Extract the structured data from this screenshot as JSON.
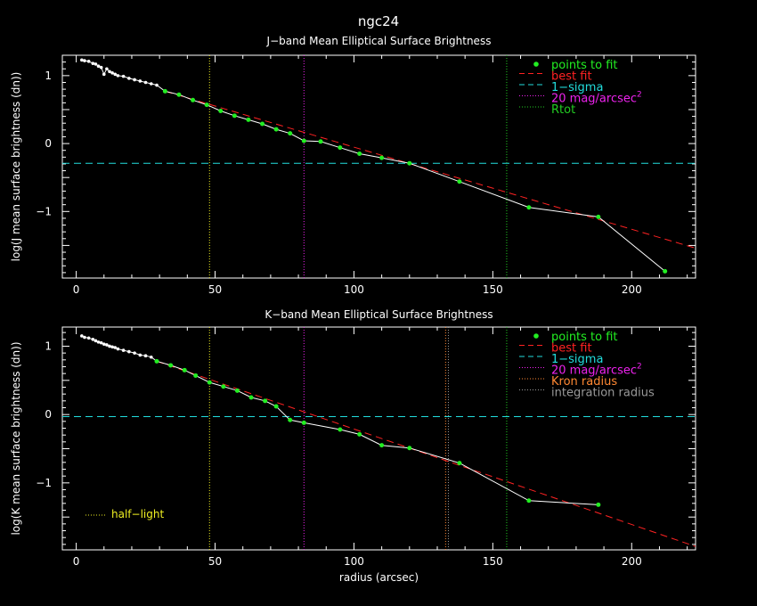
{
  "page_title": "ngc24",
  "chart_data": [
    {
      "type": "line",
      "title": "J−band Mean Elliptical Surface Brightness",
      "xlabel": "",
      "ylabel": "log(J mean surface brightness (dn))",
      "xlim": [
        -5,
        223
      ],
      "ylim": [
        -1.98,
        1.3
      ],
      "x_ticks": [
        "0",
        "50",
        "100",
        "150",
        "200"
      ],
      "y_ticks": [
        "1",
        "0",
        "−1"
      ],
      "legend_position": "top-right",
      "legend": [
        {
          "label": "points to fit",
          "color": "#22ee22"
        },
        {
          "label": "best fit",
          "color": "#ff2222"
        },
        {
          "label": "1−sigma",
          "color": "#22dddd"
        },
        {
          "label": "20 mag/arcsec",
          "sup": "2",
          "color": "#ee22ee"
        },
        {
          "label": "Rtot",
          "color": "#22cc22"
        }
      ],
      "series": [
        {
          "name": "profile",
          "x": [
            2,
            3,
            4.5,
            6,
            7,
            8,
            9,
            10,
            11,
            12,
            13,
            14,
            15,
            17,
            19,
            21,
            23,
            25,
            27,
            29
          ],
          "y": [
            1.23,
            1.22,
            1.21,
            1.18,
            1.17,
            1.14,
            1.12,
            1.02,
            1.1,
            1.06,
            1.04,
            1.02,
            1.0,
            0.99,
            0.96,
            0.94,
            0.92,
            0.9,
            0.88,
            0.86
          ]
        },
        {
          "name": "points to fit",
          "x": [
            32,
            37,
            42,
            47,
            52,
            57,
            62,
            67,
            72,
            77,
            82,
            88,
            95,
            102,
            110,
            120,
            138,
            163,
            188,
            212
          ],
          "y": [
            0.77,
            0.72,
            0.64,
            0.57,
            0.48,
            0.41,
            0.35,
            0.29,
            0.21,
            0.15,
            0.04,
            0.03,
            -0.06,
            -0.15,
            -0.21,
            -0.29,
            -0.56,
            -0.94,
            -1.08,
            -1.88
          ]
        },
        {
          "name": "best fit",
          "x": [
            32,
            223
          ],
          "y": [
            0.77,
            -1.54
          ]
        }
      ],
      "hlines": [
        {
          "name": "1−sigma",
          "y": -0.29
        }
      ],
      "vlines": [
        {
          "name": "half-light",
          "x": 48
        },
        {
          "name": "20 mag/arcsec2",
          "x": 82
        },
        {
          "name": "Rtot",
          "x": 155
        }
      ]
    },
    {
      "type": "line",
      "title": "K−band Mean Elliptical Surface Brightness",
      "xlabel": "radius (arcsec)",
      "ylabel": "log(K mean surface brightness (dn))",
      "xlim": [
        -5,
        223
      ],
      "ylim": [
        -1.98,
        1.28
      ],
      "x_ticks": [
        "0",
        "50",
        "100",
        "150",
        "200"
      ],
      "y_ticks": [
        "1",
        "0",
        "−1"
      ],
      "legend_position": "top-right",
      "legend": [
        {
          "label": "points to fit",
          "color": "#22ee22"
        },
        {
          "label": "best fit",
          "color": "#ff2222"
        },
        {
          "label": "1−sigma",
          "color": "#22dddd"
        },
        {
          "label": "20 mag/arcsec",
          "sup": "2",
          "color": "#ee22ee"
        },
        {
          "label": "Kron radius",
          "color": "#ff8833"
        },
        {
          "label": "integration radius",
          "color": "#999999"
        }
      ],
      "annotation": {
        "label": "half−light",
        "color": "#eeee22"
      },
      "series": [
        {
          "name": "profile",
          "x": [
            2,
            3,
            4.5,
            6,
            7,
            8,
            9,
            10,
            11,
            12,
            13,
            14,
            15,
            17,
            19,
            21,
            23,
            25,
            27
          ],
          "y": [
            1.15,
            1.13,
            1.12,
            1.1,
            1.08,
            1.06,
            1.05,
            1.03,
            1.02,
            1.0,
            0.99,
            0.98,
            0.96,
            0.94,
            0.92,
            0.9,
            0.87,
            0.86,
            0.84
          ]
        },
        {
          "name": "points to fit",
          "x": [
            29,
            34,
            39,
            43,
            48,
            53,
            58,
            63,
            68,
            72,
            77,
            82,
            95,
            102,
            110,
            120,
            138,
            163,
            188
          ],
          "y": [
            0.78,
            0.72,
            0.65,
            0.57,
            0.47,
            0.41,
            0.35,
            0.25,
            0.2,
            0.12,
            -0.08,
            -0.12,
            -0.22,
            -0.29,
            -0.45,
            -0.49,
            -0.71,
            -1.26,
            -1.32
          ]
        },
        {
          "name": "best fit",
          "x": [
            29,
            223
          ],
          "y": [
            0.78,
            -1.93
          ]
        }
      ],
      "hlines": [
        {
          "name": "1−sigma",
          "y": -0.03
        }
      ],
      "vlines": [
        {
          "name": "half-light",
          "x": 48
        },
        {
          "name": "20 mag/arcsec2",
          "x": 82
        },
        {
          "name": "Kron radius",
          "x": 133
        },
        {
          "name": "integration radius",
          "x": 134
        },
        {
          "name": "Rtot",
          "x": 155
        }
      ]
    }
  ]
}
